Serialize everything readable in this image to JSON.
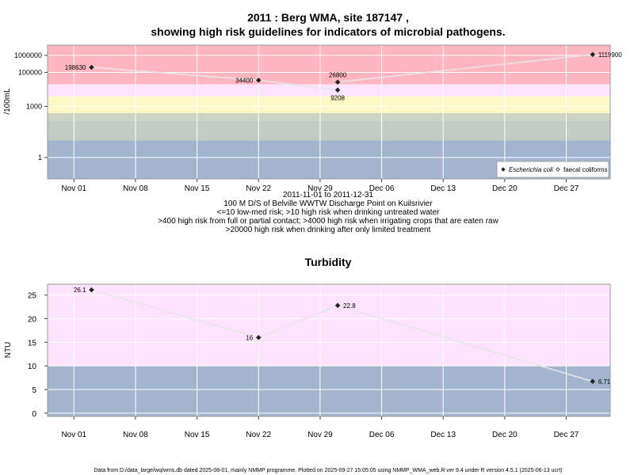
{
  "footer": "Data from D:/data_large/wq/wms.db dated 2025-08-01, mainly NMMP programme. Plotted on 2025-09-27 15:05:05 using NMMP_WMA_web.R ver 9.4 under R version 4.5.1 (2025-06-13 ucrt)",
  "chart_data": [
    {
      "type": "scatter",
      "y_scale": "log",
      "title": [
        "2011 : Berg WMA, site 187147 ,",
        "showing high risk guidelines for indicators of microbial pathogens."
      ],
      "xlabel_lines": [
        "2011-11-01 to 2011-12-31",
        "100 M D/S of Belville WWTW Discharge Point on Kuilsrivier",
        "<=10 low-med risk; >10 high risk when drinking untreated water",
        ">400 high risk from full or partial contact; >4000 high risk when irrigating crops that are eaten raw",
        ">20000 high risk when drinking after only limited treatment"
      ],
      "ylabel": "/100mL",
      "x_ticks": [
        {
          "label": "Nov 01",
          "day": 0
        },
        {
          "label": "Nov 08",
          "day": 7
        },
        {
          "label": "Nov 15",
          "day": 14
        },
        {
          "label": "Nov 22",
          "day": 21
        },
        {
          "label": "Nov 29",
          "day": 28
        },
        {
          "label": "Dec 06",
          "day": 35
        },
        {
          "label": "Dec 13",
          "day": 42
        },
        {
          "label": "Dec 20",
          "day": 49
        },
        {
          "label": "Dec 27",
          "day": 56
        }
      ],
      "xlim_days": [
        -3,
        61
      ],
      "y_ticks": [
        {
          "label": "1",
          "value": 1
        },
        {
          "label": "1000",
          "value": 1000
        },
        {
          "label": "100000",
          "value": 100000
        },
        {
          "label": "1000000",
          "value": 1000000
        }
      ],
      "ylim": [
        0.055,
        4000000
      ],
      "bands": [
        {
          "from": 0.055,
          "to": 10,
          "color": "#a3b5ce"
        },
        {
          "from": 10,
          "to": 150,
          "color": "#c2ccc5"
        },
        {
          "from": 150,
          "to": 400,
          "color": "#cdd2c3"
        },
        {
          "from": 400,
          "to": 4000,
          "color": "#fcf9c6"
        },
        {
          "from": 4000,
          "to": 20000,
          "color": "#fde3fd"
        },
        {
          "from": 20000,
          "to": 4000000,
          "color": "#ffb6c1"
        }
      ],
      "series": [
        {
          "name": "Escherichia coli",
          "marker": "diamond",
          "points": [
            {
              "day": 2,
              "value": 198630,
              "label": "198630",
              "pos": "left"
            },
            {
              "day": 21,
              "value": 34400,
              "label": "34400",
              "pos": "left"
            },
            {
              "day": 30,
              "value": 26800,
              "label": "26800",
              "pos": "above"
            },
            {
              "day": 30,
              "value": 9208,
              "label": "9208",
              "pos": "below"
            },
            {
              "day": 59,
              "value": 1119900,
              "label": "1119900",
              "pos": "right"
            }
          ]
        },
        {
          "name": "faecal coliforms",
          "marker": "open-diamond",
          "points": []
        }
      ],
      "trend_line": [
        {
          "day": 2,
          "value": 198630
        },
        {
          "day": 21,
          "value": 34400
        },
        {
          "day": 30,
          "value": 9208
        },
        {
          "day": 30,
          "value": 26800
        },
        {
          "day": 59,
          "value": 1119900
        }
      ],
      "legend": [
        {
          "label": "Escherichia coli",
          "marker": "diamond",
          "italic": true
        },
        {
          "label": "faecal coliforms",
          "marker": "open-diamond",
          "italic": false
        }
      ],
      "legend_position": "bottom-right"
    },
    {
      "type": "scatter",
      "title": "Turbidity",
      "ylabel": "NTU",
      "x_ticks": [
        {
          "label": "Nov 01",
          "day": 0
        },
        {
          "label": "Nov 08",
          "day": 7
        },
        {
          "label": "Nov 15",
          "day": 14
        },
        {
          "label": "Nov 22",
          "day": 21
        },
        {
          "label": "Nov 29",
          "day": 28
        },
        {
          "label": "Dec 06",
          "day": 35
        },
        {
          "label": "Dec 13",
          "day": 42
        },
        {
          "label": "Dec 20",
          "day": 49
        },
        {
          "label": "Dec 27",
          "day": 56
        }
      ],
      "xlim_days": [
        -3,
        61
      ],
      "y_ticks": [
        0,
        5,
        10,
        15,
        20,
        25
      ],
      "ylim": [
        -0.7,
        27.3
      ],
      "bands": [
        {
          "from": -0.7,
          "to": 10,
          "color": "#a3b5ce"
        },
        {
          "from": 10,
          "to": 27.3,
          "color": "#fde3fd"
        }
      ],
      "series": [
        {
          "name": "Turbidity",
          "marker": "diamond",
          "points": [
            {
              "day": 2,
              "value": 26.1,
              "label": "26.1",
              "pos": "left"
            },
            {
              "day": 21,
              "value": 16,
              "label": "16",
              "pos": "left"
            },
            {
              "day": 30,
              "value": 22.8,
              "label": "22.8",
              "pos": "right"
            },
            {
              "day": 59,
              "value": 6.71,
              "label": "6.71",
              "pos": "right"
            }
          ]
        }
      ]
    }
  ]
}
